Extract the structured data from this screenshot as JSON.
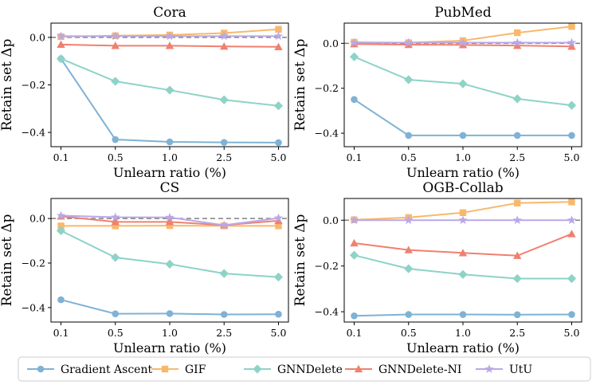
{
  "colors": {
    "gradient_ascent": "#7fb2d5",
    "gif": "#f8b86c",
    "gnndelete": "#8dd3c7",
    "gnndelete_ni": "#f08070",
    "utu": "#b9a8e8",
    "zero_line": "#808080",
    "axis": "#000000"
  },
  "legend": {
    "items": [
      {
        "key": "gradient_ascent",
        "label": "Gradient Ascent",
        "marker": "circle"
      },
      {
        "key": "gif",
        "label": "GIF",
        "marker": "square"
      },
      {
        "key": "gnndelete",
        "label": "GNNDelete",
        "marker": "diamond"
      },
      {
        "key": "gnndelete_ni",
        "label": "GNNDelete-NI",
        "marker": "triangle"
      },
      {
        "key": "utu",
        "label": "UtU",
        "marker": "star"
      }
    ]
  },
  "chart_data": [
    {
      "type": "line",
      "title": "Cora",
      "xlabel": "Unlearn ratio (%)",
      "ylabel": "Retain set Δp",
      "categories": [
        "0.1",
        "0.5",
        "1.0",
        "2.5",
        "5.0"
      ],
      "ylim": [
        -0.46,
        0.06
      ],
      "yticks": [
        "0.0",
        "−0.2",
        "−0.4"
      ],
      "ytick_values": [
        0.0,
        -0.2,
        -0.4
      ],
      "series": [
        {
          "key": "gradient_ascent",
          "values": [
            -0.09,
            -0.43,
            -0.44,
            -0.442,
            -0.443
          ]
        },
        {
          "key": "gif",
          "values": [
            0.003,
            0.007,
            0.01,
            0.018,
            0.034
          ]
        },
        {
          "key": "gnndelete",
          "values": [
            -0.09,
            -0.185,
            -0.222,
            -0.263,
            -0.288
          ]
        },
        {
          "key": "gnndelete_ni",
          "values": [
            -0.03,
            -0.035,
            -0.035,
            -0.038,
            -0.04
          ]
        },
        {
          "key": "utu",
          "values": [
            0.005,
            0.005,
            0.005,
            0.005,
            0.005
          ]
        }
      ]
    },
    {
      "type": "line",
      "title": "PubMed",
      "xlabel": "Unlearn ratio (%)",
      "ylabel": "Retain set Δp",
      "categories": [
        "0.1",
        "0.5",
        "1.0",
        "2.5",
        "5.0"
      ],
      "ylim": [
        -0.46,
        0.09
      ],
      "yticks": [
        "0.0",
        "−0.2",
        "−0.4"
      ],
      "ytick_values": [
        0.0,
        -0.2,
        -0.4
      ],
      "series": [
        {
          "key": "gradient_ascent",
          "values": [
            -0.25,
            -0.41,
            -0.41,
            -0.41,
            -0.41
          ]
        },
        {
          "key": "gif",
          "values": [
            0.005,
            0.003,
            0.012,
            0.047,
            0.075
          ]
        },
        {
          "key": "gnndelete",
          "values": [
            -0.06,
            -0.162,
            -0.18,
            -0.247,
            -0.276
          ]
        },
        {
          "key": "gnndelete_ni",
          "values": [
            -0.003,
            -0.006,
            -0.007,
            -0.01,
            -0.014
          ]
        },
        {
          "key": "utu",
          "values": [
            0.003,
            0.003,
            0.003,
            0.003,
            0.003
          ]
        }
      ]
    },
    {
      "type": "line",
      "title": "CS",
      "xlabel": "Unlearn ratio (%)",
      "ylabel": "Retain set Δp",
      "categories": [
        "0.1",
        "0.5",
        "1.0",
        "2.5",
        "5.0"
      ],
      "ylim": [
        -0.465,
        0.09
      ],
      "yticks": [
        "0.0",
        "−0.2",
        "−0.4"
      ],
      "ytick_values": [
        0.0,
        -0.2,
        -0.4
      ],
      "series": [
        {
          "key": "gradient_ascent",
          "values": [
            -0.365,
            -0.428,
            -0.427,
            -0.431,
            -0.43
          ]
        },
        {
          "key": "gif",
          "values": [
            -0.033,
            -0.033,
            -0.032,
            -0.033,
            -0.033
          ]
        },
        {
          "key": "gnndelete",
          "values": [
            -0.055,
            -0.175,
            -0.205,
            -0.247,
            -0.263
          ]
        },
        {
          "key": "gnndelete_ni",
          "values": [
            0.01,
            -0.015,
            -0.015,
            -0.03,
            -0.01
          ]
        },
        {
          "key": "utu",
          "values": [
            0.013,
            0.006,
            0.005,
            -0.03,
            0.002
          ]
        }
      ]
    },
    {
      "type": "line",
      "title": "OGB-Collab",
      "xlabel": "Unlearn ratio (%)",
      "ylabel": "Retain set Δp",
      "categories": [
        "0.1",
        "0.5",
        "1.0",
        "2.5",
        "5.0"
      ],
      "ylim": [
        -0.445,
        0.095
      ],
      "yticks": [
        "0.0",
        "−0.2",
        "−0.4"
      ],
      "ytick_values": [
        0.0,
        -0.2,
        -0.4
      ],
      "series": [
        {
          "key": "gradient_ascent",
          "values": [
            -0.418,
            -0.412,
            -0.412,
            -0.413,
            -0.412
          ]
        },
        {
          "key": "gif",
          "values": [
            0.002,
            0.012,
            0.033,
            0.075,
            0.08
          ]
        },
        {
          "key": "gnndelete",
          "values": [
            -0.153,
            -0.212,
            -0.237,
            -0.255,
            -0.255
          ]
        },
        {
          "key": "gnndelete_ni",
          "values": [
            -0.1,
            -0.13,
            -0.143,
            -0.155,
            -0.06
          ]
        },
        {
          "key": "utu",
          "values": [
            0.0,
            0.0,
            0.0,
            0.0,
            0.0
          ]
        }
      ]
    }
  ]
}
